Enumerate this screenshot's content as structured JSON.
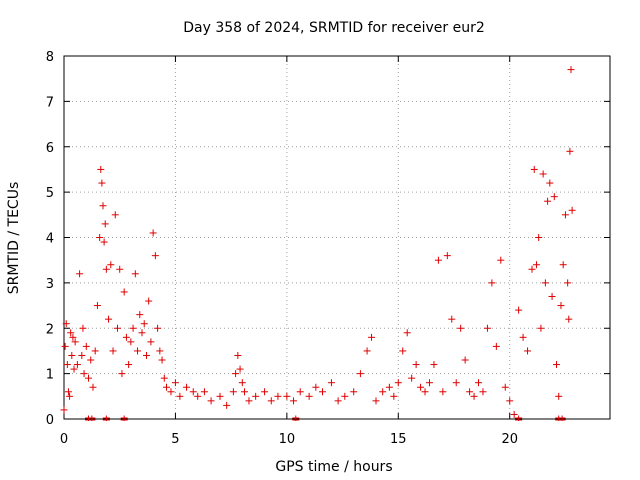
{
  "chart_data": {
    "type": "scatter",
    "title": "Day 358 of 2024, SRMTID for receiver eur2",
    "xlabel": "GPS time / hours",
    "ylabel": "SRMTID / TECUs",
    "xlim": [
      0,
      24.5
    ],
    "ylim": [
      0,
      8
    ],
    "xticks": [
      0,
      5,
      10,
      15,
      20
    ],
    "yticks": [
      0,
      1,
      2,
      3,
      4,
      5,
      6,
      7,
      8
    ],
    "grid": true,
    "marker": "+",
    "marker_color": "#e00000",
    "series": [
      {
        "name": "SRMTID",
        "x": [
          0.0,
          0.05,
          0.1,
          0.15,
          0.2,
          0.25,
          0.3,
          0.35,
          0.4,
          0.45,
          0.5,
          0.6,
          0.7,
          0.8,
          0.85,
          0.9,
          1.0,
          1.1,
          1.2,
          1.3,
          1.4,
          1.5,
          1.6,
          1.65,
          1.7,
          1.75,
          1.8,
          1.85,
          1.9,
          2.0,
          2.1,
          2.2,
          2.3,
          2.4,
          2.5,
          2.6,
          2.7,
          2.8,
          2.9,
          3.0,
          3.1,
          3.2,
          3.3,
          3.4,
          3.5,
          3.6,
          3.7,
          3.8,
          3.9,
          4.0,
          4.1,
          4.2,
          4.3,
          4.4,
          4.5,
          4.6,
          4.8,
          5.0,
          5.2,
          5.5,
          5.8,
          6.0,
          6.3,
          6.6,
          7.0,
          7.3,
          7.6,
          7.7,
          7.8,
          7.9,
          8.0,
          8.1,
          8.3,
          8.6,
          9.0,
          9.3,
          9.6,
          10.0,
          10.3,
          10.6,
          11.0,
          11.3,
          11.6,
          12.0,
          12.3,
          12.6,
          13.0,
          13.3,
          13.6,
          13.8,
          14.0,
          14.3,
          14.6,
          14.8,
          15.0,
          15.2,
          15.4,
          15.6,
          15.8,
          16.0,
          16.2,
          16.4,
          16.6,
          16.8,
          17.0,
          17.2,
          17.4,
          17.6,
          17.8,
          18.0,
          18.2,
          18.4,
          18.6,
          18.8,
          19.0,
          19.2,
          19.4,
          19.6,
          19.8,
          20.0,
          20.2,
          20.4,
          20.6,
          20.8,
          21.0,
          21.1,
          21.2,
          21.3,
          21.4,
          21.5,
          21.6,
          21.7,
          21.8,
          21.9,
          22.0,
          22.1,
          22.2,
          22.3,
          22.4,
          22.5,
          22.6,
          22.65,
          22.7,
          22.75,
          22.8
        ],
        "y": [
          0.2,
          1.6,
          2.1,
          1.2,
          0.6,
          0.5,
          1.9,
          1.4,
          1.8,
          1.1,
          1.7,
          1.2,
          3.2,
          1.4,
          2.0,
          1.0,
          1.6,
          0.9,
          1.3,
          0.7,
          1.5,
          2.5,
          4.0,
          5.5,
          5.2,
          4.7,
          3.9,
          4.3,
          3.3,
          2.2,
          3.4,
          1.5,
          4.5,
          2.0,
          3.3,
          1.0,
          2.8,
          1.8,
          1.2,
          1.7,
          2.0,
          3.2,
          1.5,
          2.3,
          1.9,
          2.1,
          1.4,
          2.6,
          1.7,
          4.1,
          3.6,
          2.0,
          1.5,
          1.3,
          0.9,
          0.7,
          0.6,
          0.8,
          0.5,
          0.7,
          0.6,
          0.5,
          0.6,
          0.4,
          0.5,
          0.3,
          0.6,
          1.0,
          1.4,
          1.1,
          0.8,
          0.6,
          0.4,
          0.5,
          0.6,
          0.4,
          0.5,
          0.5,
          0.4,
          0.6,
          0.5,
          0.7,
          0.6,
          0.8,
          0.4,
          0.5,
          0.6,
          1.0,
          1.5,
          1.8,
          0.4,
          0.6,
          0.7,
          0.5,
          0.8,
          1.5,
          1.9,
          0.9,
          1.2,
          0.7,
          0.6,
          0.8,
          1.2,
          3.5,
          0.6,
          3.6,
          2.2,
          0.8,
          2.0,
          1.3,
          0.6,
          0.5,
          0.8,
          0.6,
          2.0,
          3.0,
          1.6,
          3.5,
          0.7,
          0.4,
          0.1,
          2.4,
          1.8,
          1.5,
          3.3,
          5.5,
          3.4,
          4.0,
          2.0,
          5.4,
          3.0,
          4.8,
          5.2,
          2.7,
          4.9,
          1.2,
          0.5,
          2.5,
          3.4,
          4.5,
          3.0,
          2.2,
          5.9,
          7.7,
          4.6
        ]
      }
    ],
    "zero_markers_x": [
      1.1,
      1.25,
      1.9,
      2.7,
      10.4,
      20.4,
      22.2,
      22.35
    ]
  }
}
